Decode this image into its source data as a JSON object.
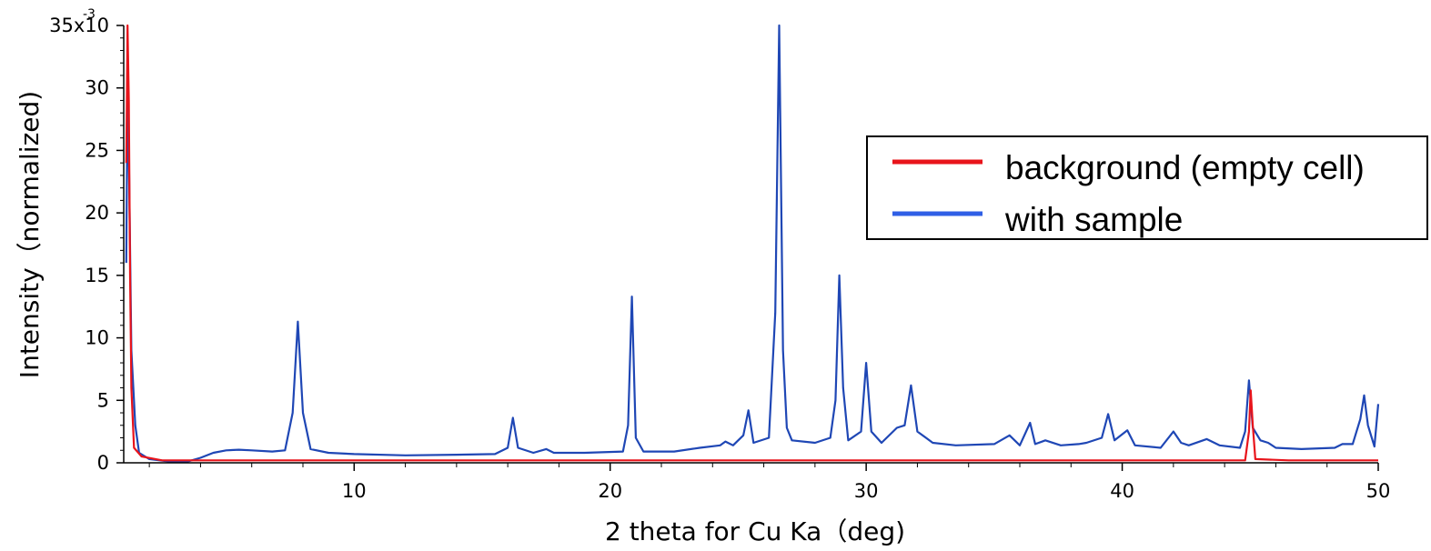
{
  "chart_data": {
    "type": "line",
    "xlabel": "2 theta for Cu Ka（deg)",
    "ylabel": "Intensity（normalized)",
    "xlim": [
      1,
      50
    ],
    "ylim": [
      0,
      0.035
    ],
    "x_ticks": [
      10,
      20,
      30,
      40,
      50
    ],
    "x_tick_labels": [
      "10",
      "20",
      "30",
      "40",
      "50"
    ],
    "y_ticks": [
      0,
      0.005,
      0.01,
      0.015,
      0.02,
      0.025,
      0.03,
      0.035
    ],
    "y_tick_labels": [
      "0",
      "5",
      "10",
      "15",
      "20",
      "25",
      "30",
      "35x10"
    ],
    "y_exponent_label": "-3",
    "grid": false,
    "legend": {
      "position": "top-right"
    },
    "series": [
      {
        "name": "background (empty cell)",
        "color": "#e8141b",
        "points": [
          [
            1.1,
            0.024
          ],
          [
            1.15,
            0.035
          ],
          [
            1.2,
            0.029
          ],
          [
            1.25,
            0.015
          ],
          [
            1.3,
            0.006
          ],
          [
            1.4,
            0.0012
          ],
          [
            1.7,
            0.0005
          ],
          [
            2.5,
            0.0002
          ],
          [
            5,
            0.0002
          ],
          [
            15,
            0.0002
          ],
          [
            30,
            0.0002
          ],
          [
            38,
            0.0002
          ],
          [
            44.8,
            0.0002
          ],
          [
            44.95,
            0.0025
          ],
          [
            45.02,
            0.0058
          ],
          [
            45.1,
            0.003
          ],
          [
            45.2,
            0.0003
          ],
          [
            46.5,
            0.0002
          ],
          [
            50,
            0.0002
          ]
        ]
      },
      {
        "name": "with sample",
        "color": "#1f47b5",
        "points": [
          [
            1.1,
            0.016
          ],
          [
            1.15,
            0.03
          ],
          [
            1.2,
            0.025
          ],
          [
            1.3,
            0.009
          ],
          [
            1.45,
            0.003
          ],
          [
            1.6,
            0.0008
          ],
          [
            2.0,
            0.0003
          ],
          [
            2.8,
            0.0001
          ],
          [
            3.5,
            0.0001
          ],
          [
            4.0,
            0.0004
          ],
          [
            4.5,
            0.0008
          ],
          [
            5.0,
            0.001
          ],
          [
            5.5,
            0.00105
          ],
          [
            6.0,
            0.001
          ],
          [
            6.8,
            0.0009
          ],
          [
            7.3,
            0.001
          ],
          [
            7.6,
            0.004
          ],
          [
            7.8,
            0.0113
          ],
          [
            8.0,
            0.004
          ],
          [
            8.3,
            0.0011
          ],
          [
            9.0,
            0.0008
          ],
          [
            10,
            0.0007
          ],
          [
            12,
            0.0006
          ],
          [
            14,
            0.00065
          ],
          [
            15.5,
            0.0007
          ],
          [
            16.0,
            0.0012
          ],
          [
            16.2,
            0.0036
          ],
          [
            16.4,
            0.0012
          ],
          [
            17.0,
            0.0008
          ],
          [
            17.5,
            0.0011
          ],
          [
            17.8,
            0.0008
          ],
          [
            19.0,
            0.0008
          ],
          [
            20.5,
            0.0009
          ],
          [
            20.7,
            0.003
          ],
          [
            20.85,
            0.0133
          ],
          [
            21.0,
            0.002
          ],
          [
            21.3,
            0.0009
          ],
          [
            22.5,
            0.0009
          ],
          [
            23.5,
            0.0012
          ],
          [
            24.3,
            0.0014
          ],
          [
            24.5,
            0.0017
          ],
          [
            24.8,
            0.0014
          ],
          [
            25.2,
            0.0022
          ],
          [
            25.4,
            0.0042
          ],
          [
            25.6,
            0.0016
          ],
          [
            26.2,
            0.002
          ],
          [
            26.45,
            0.012
          ],
          [
            26.6,
            0.035
          ],
          [
            26.75,
            0.009
          ],
          [
            26.9,
            0.0028
          ],
          [
            27.1,
            0.0018
          ],
          [
            28.0,
            0.0016
          ],
          [
            28.6,
            0.002
          ],
          [
            28.8,
            0.005
          ],
          [
            28.95,
            0.015
          ],
          [
            29.1,
            0.006
          ],
          [
            29.3,
            0.0018
          ],
          [
            29.8,
            0.0025
          ],
          [
            30.0,
            0.008
          ],
          [
            30.2,
            0.0025
          ],
          [
            30.6,
            0.0016
          ],
          [
            31.2,
            0.0028
          ],
          [
            31.5,
            0.003
          ],
          [
            31.75,
            0.0062
          ],
          [
            32.0,
            0.0025
          ],
          [
            32.6,
            0.0016
          ],
          [
            33.5,
            0.0014
          ],
          [
            35.0,
            0.0015
          ],
          [
            35.6,
            0.0022
          ],
          [
            36.0,
            0.0014
          ],
          [
            36.4,
            0.0032
          ],
          [
            36.6,
            0.0015
          ],
          [
            37.0,
            0.0018
          ],
          [
            37.6,
            0.0014
          ],
          [
            38.3,
            0.0015
          ],
          [
            38.6,
            0.0016
          ],
          [
            39.2,
            0.002
          ],
          [
            39.45,
            0.0039
          ],
          [
            39.7,
            0.0018
          ],
          [
            40.2,
            0.0026
          ],
          [
            40.5,
            0.0014
          ],
          [
            41.5,
            0.0012
          ],
          [
            42.0,
            0.0025
          ],
          [
            42.3,
            0.0016
          ],
          [
            42.6,
            0.0014
          ],
          [
            43.3,
            0.0019
          ],
          [
            43.8,
            0.0014
          ],
          [
            44.6,
            0.0012
          ],
          [
            44.8,
            0.0025
          ],
          [
            44.95,
            0.0066
          ],
          [
            45.1,
            0.0028
          ],
          [
            45.4,
            0.0018
          ],
          [
            45.7,
            0.0016
          ],
          [
            46.0,
            0.0012
          ],
          [
            47.0,
            0.0011
          ],
          [
            48.3,
            0.0012
          ],
          [
            48.6,
            0.0015
          ],
          [
            49.0,
            0.0015
          ],
          [
            49.3,
            0.0035
          ],
          [
            49.45,
            0.0054
          ],
          [
            49.6,
            0.003
          ],
          [
            49.85,
            0.0013
          ],
          [
            50.0,
            0.0047
          ]
        ]
      }
    ]
  }
}
